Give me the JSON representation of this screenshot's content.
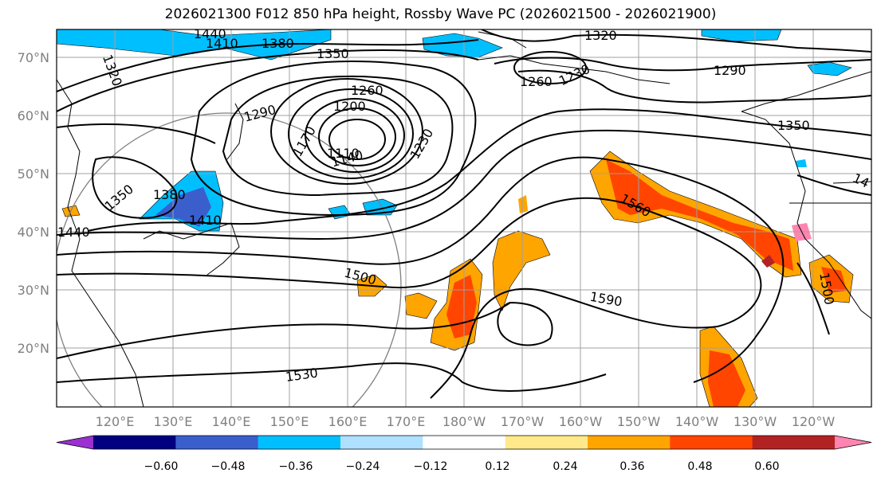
{
  "title": "2026021300 F012 850 hPa height, Rossby Wave PC (2026021500 - 2026021900)",
  "lat_labels": [
    "70°N",
    "60°N",
    "50°N",
    "40°N",
    "30°N",
    "20°N"
  ],
  "lon_labels": [
    "120°E",
    "130°E",
    "140°E",
    "150°E",
    "160°E",
    "170°E",
    "180°W",
    "170°W",
    "160°W",
    "150°W",
    "140°W",
    "130°W",
    "120°W"
  ],
  "colorbar": {
    "ticks": [
      "−0.60",
      "−0.48",
      "−0.36",
      "−0.24",
      "−0.12",
      "0.12",
      "0.24",
      "0.36",
      "0.48",
      "0.60"
    ],
    "colors": [
      "#9b30d0",
      "#000080",
      "#3a5fcd",
      "#00bfff",
      "#b0e0ff",
      "#ffffff",
      "#ffe98a",
      "#ffa500",
      "#ff4500",
      "#b22222",
      "#ff85b0"
    ]
  },
  "contour_labels": [
    "1440",
    "1410",
    "1380",
    "1320",
    "1350",
    "1320",
    "1290",
    "1260",
    "1230",
    "1260",
    "1290",
    "1200",
    "1170",
    "1140",
    "1110",
    "1230",
    "1350",
    "1380",
    "1410",
    "1440",
    "1350",
    "1500",
    "1560",
    "1590",
    "1530",
    "1500",
    "14"
  ],
  "colors": {
    "contour": "#000000",
    "grid": "#a0a0a0",
    "circle": "#808080"
  }
}
